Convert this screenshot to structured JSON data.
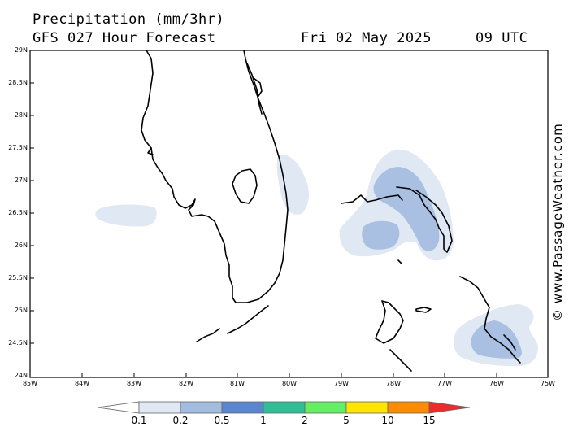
{
  "title": {
    "line1": "Precipitation (mm/3hr)",
    "line2": "GFS 027 Hour Forecast",
    "date": "Fri 02 May 2025",
    "time": "09 UTC"
  },
  "credit": "© www.PassageWeather.com",
  "axes": {
    "lat_labels": [
      "29N",
      "28.5N",
      "28N",
      "27.5N",
      "27N",
      "26.5N",
      "26N",
      "25.5N",
      "25N",
      "24.5N",
      "24N"
    ],
    "lon_labels": [
      "85W",
      "84W",
      "83W",
      "82W",
      "81W",
      "80W",
      "79W",
      "78W",
      "77W",
      "76W",
      "75W"
    ]
  },
  "legend": {
    "labels": [
      "0.1",
      "0.2",
      "0.5",
      "1",
      "2",
      "5",
      "10",
      "15"
    ],
    "colors": [
      "#ffffff",
      "#e0e8f4",
      "#a3bde0",
      "#5a86d0",
      "#2ebf96",
      "#62f062",
      "#ffe600",
      "#ff8c00",
      "#ee2a2a"
    ]
  },
  "precip_colors": {
    "light": "#e0e8f4",
    "medium": "#a9c0e2"
  }
}
